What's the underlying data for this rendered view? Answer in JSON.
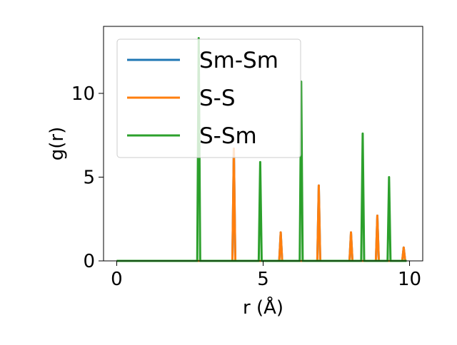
{
  "chart_data": {
    "type": "line",
    "title": "",
    "xlabel": "r (Å)",
    "ylabel": "g(r)",
    "xlim": [
      -0.45,
      10.45
    ],
    "ylim": [
      0,
      14
    ],
    "xticks": [
      0,
      5,
      10
    ],
    "yticks": [
      0,
      5,
      10
    ],
    "grid": false,
    "legend": {
      "placement": "top-left"
    },
    "series": [
      {
        "name": "Sm-Sm",
        "color": "#1f77b4",
        "x": [
          0,
          3.95,
          4.0,
          4.05,
          5.55,
          5.6,
          5.65,
          6.85,
          6.9,
          6.95,
          7.95,
          8.0,
          8.05,
          8.85,
          8.9,
          8.95,
          9.75,
          9.8,
          9.85,
          9.9
        ],
        "y": [
          0,
          0,
          6.7,
          0,
          0,
          1.7,
          0,
          0,
          4.5,
          0,
          0,
          1.7,
          0,
          0,
          2.7,
          0,
          0,
          0.8,
          0,
          0
        ]
      },
      {
        "name": "S-S",
        "color": "#ff7f0e",
        "x": [
          0,
          3.95,
          4.0,
          4.05,
          5.55,
          5.6,
          5.65,
          6.85,
          6.9,
          6.95,
          7.95,
          8.0,
          8.05,
          8.85,
          8.9,
          8.95,
          9.75,
          9.8,
          9.85,
          9.9
        ],
        "y": [
          0,
          0,
          6.7,
          0,
          0,
          1.7,
          0,
          0,
          4.5,
          0,
          0,
          1.7,
          0,
          0,
          2.7,
          0,
          0,
          0.8,
          0,
          0
        ]
      },
      {
        "name": "S-Sm",
        "color": "#2ca02c",
        "x": [
          0,
          2.75,
          2.8,
          2.85,
          4.85,
          4.9,
          4.95,
          6.25,
          6.3,
          6.35,
          8.35,
          8.4,
          8.45,
          9.25,
          9.3,
          9.35,
          9.9
        ],
        "y": [
          0,
          0,
          13.3,
          0,
          0,
          5.9,
          0,
          0,
          10.7,
          0,
          0,
          7.6,
          0,
          0,
          5.0,
          0,
          0
        ]
      }
    ]
  }
}
